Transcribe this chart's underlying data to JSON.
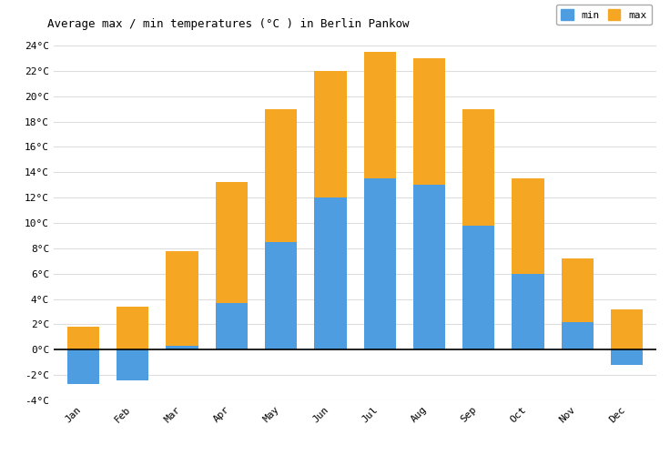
{
  "title": "Average max / min temperatures (°C ) in Berlin Pankow",
  "months": [
    "Jan",
    "Feb",
    "Mar",
    "Apr",
    "May",
    "Jun",
    "Jul",
    "Aug",
    "Sep",
    "Oct",
    "Nov",
    "Dec"
  ],
  "min_temps": [
    -2.7,
    -2.4,
    0.3,
    3.7,
    8.5,
    12.0,
    13.5,
    13.0,
    9.8,
    6.0,
    2.2,
    -1.2
  ],
  "max_temps": [
    1.8,
    3.4,
    7.8,
    13.2,
    19.0,
    22.0,
    23.5,
    23.0,
    19.0,
    13.5,
    7.2,
    3.2
  ],
  "min_color": "#4d9de0",
  "max_color": "#f5a623",
  "ylim": [
    -4,
    24
  ],
  "yticks": [
    -4,
    -2,
    0,
    2,
    4,
    6,
    8,
    10,
    12,
    14,
    16,
    18,
    20,
    22,
    24
  ],
  "background_color": "#ffffff",
  "grid_color": "#dddddd",
  "title_fontsize": 9,
  "legend_fontsize": 8,
  "tick_fontsize": 8,
  "bar_width": 0.65
}
